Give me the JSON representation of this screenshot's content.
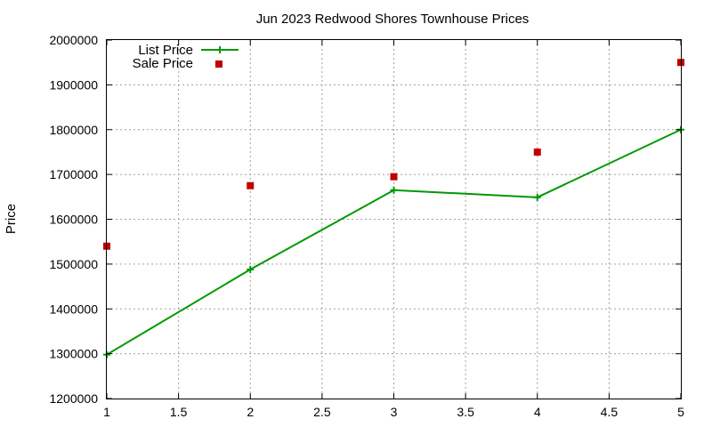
{
  "chart_data": {
    "type": "line",
    "title": "Jun 2023 Redwood Shores Townhouse Prices",
    "xlabel": "",
    "ylabel": "Price",
    "xlim": [
      1,
      5
    ],
    "ylim": [
      1200000,
      2000000
    ],
    "x_ticks": [
      "1",
      "1.5",
      "2",
      "2.5",
      "3",
      "3.5",
      "4",
      "4.5",
      "5"
    ],
    "y_ticks": [
      "1200000",
      "1300000",
      "1400000",
      "1500000",
      "1600000",
      "1700000",
      "1800000",
      "1900000",
      "2000000"
    ],
    "grid": true,
    "legend_position": "top-left",
    "series": [
      {
        "name": "List Price",
        "style": "line-with-plus-markers",
        "color": "#009900",
        "x": [
          1,
          2,
          3,
          4,
          5
        ],
        "y": [
          1298000,
          1488000,
          1665000,
          1649000,
          1800000
        ]
      },
      {
        "name": "Sale Price",
        "style": "square-markers",
        "color": "#c00000",
        "x": [
          1,
          2,
          3,
          4,
          5
        ],
        "y": [
          1540000,
          1675000,
          1695000,
          1750000,
          1950000
        ]
      }
    ]
  }
}
